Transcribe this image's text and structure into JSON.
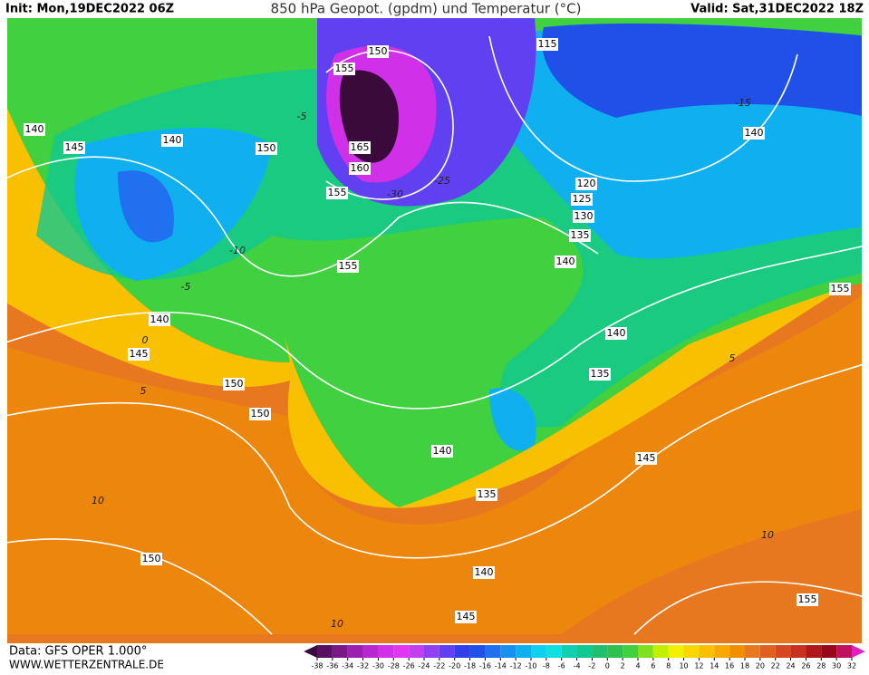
{
  "header": {
    "init": "Init: Mon,19DEC2022 06Z",
    "title": "850 hPa Geopot. (gpdm) und Temperatur (°C)",
    "valid": "Valid: Sat,31DEC2022 18Z"
  },
  "footer": {
    "data": "Data: GFS OPER 1.000°",
    "site": "WWW.WETTERZENTRALE.DE"
  },
  "legend": {
    "ticks": [
      -38,
      -36,
      -34,
      -32,
      -30,
      -28,
      -26,
      -24,
      -22,
      -20,
      -18,
      -16,
      -14,
      -12,
      -10,
      -8,
      -6,
      -4,
      -2,
      0,
      2,
      4,
      6,
      8,
      10,
      12,
      14,
      16,
      18,
      20,
      22,
      24,
      26,
      28,
      30,
      32
    ],
    "colors": [
      "#3a0a3a",
      "#5a1060",
      "#7a1888",
      "#9a20b0",
      "#b828d0",
      "#d030e8",
      "#e038f0",
      "#c040f0",
      "#9040f0",
      "#6040f0",
      "#3040e8",
      "#2050e8",
      "#2070f0",
      "#1890f0",
      "#10b0f0",
      "#10d0f0",
      "#10e0e0",
      "#10d0b0",
      "#10c890",
      "#20c070",
      "#30c050",
      "#40d040",
      "#80e020",
      "#c0f000",
      "#f0f000",
      "#f8d800",
      "#f8c000",
      "#f8a800",
      "#f09000",
      "#e87820",
      "#e06020",
      "#d84820",
      "#c83020",
      "#b01818",
      "#980818",
      "#c01060",
      "#e020c0"
    ]
  },
  "geopotential_labels": [
    "150",
    "155",
    "165",
    "160",
    "155",
    "115",
    "140",
    "145",
    "140",
    "150",
    "140",
    "120",
    "125",
    "130",
    "135",
    "140",
    "155",
    "155",
    "140",
    "145",
    "140",
    "150",
    "135",
    "150",
    "140",
    "145",
    "135",
    "150",
    "140",
    "145",
    "155"
  ],
  "temperature_labels": [
    "-30",
    "-25",
    "-15",
    "-10",
    "-5",
    "-5",
    "0",
    "5",
    "10",
    "10",
    "10",
    "5"
  ]
}
